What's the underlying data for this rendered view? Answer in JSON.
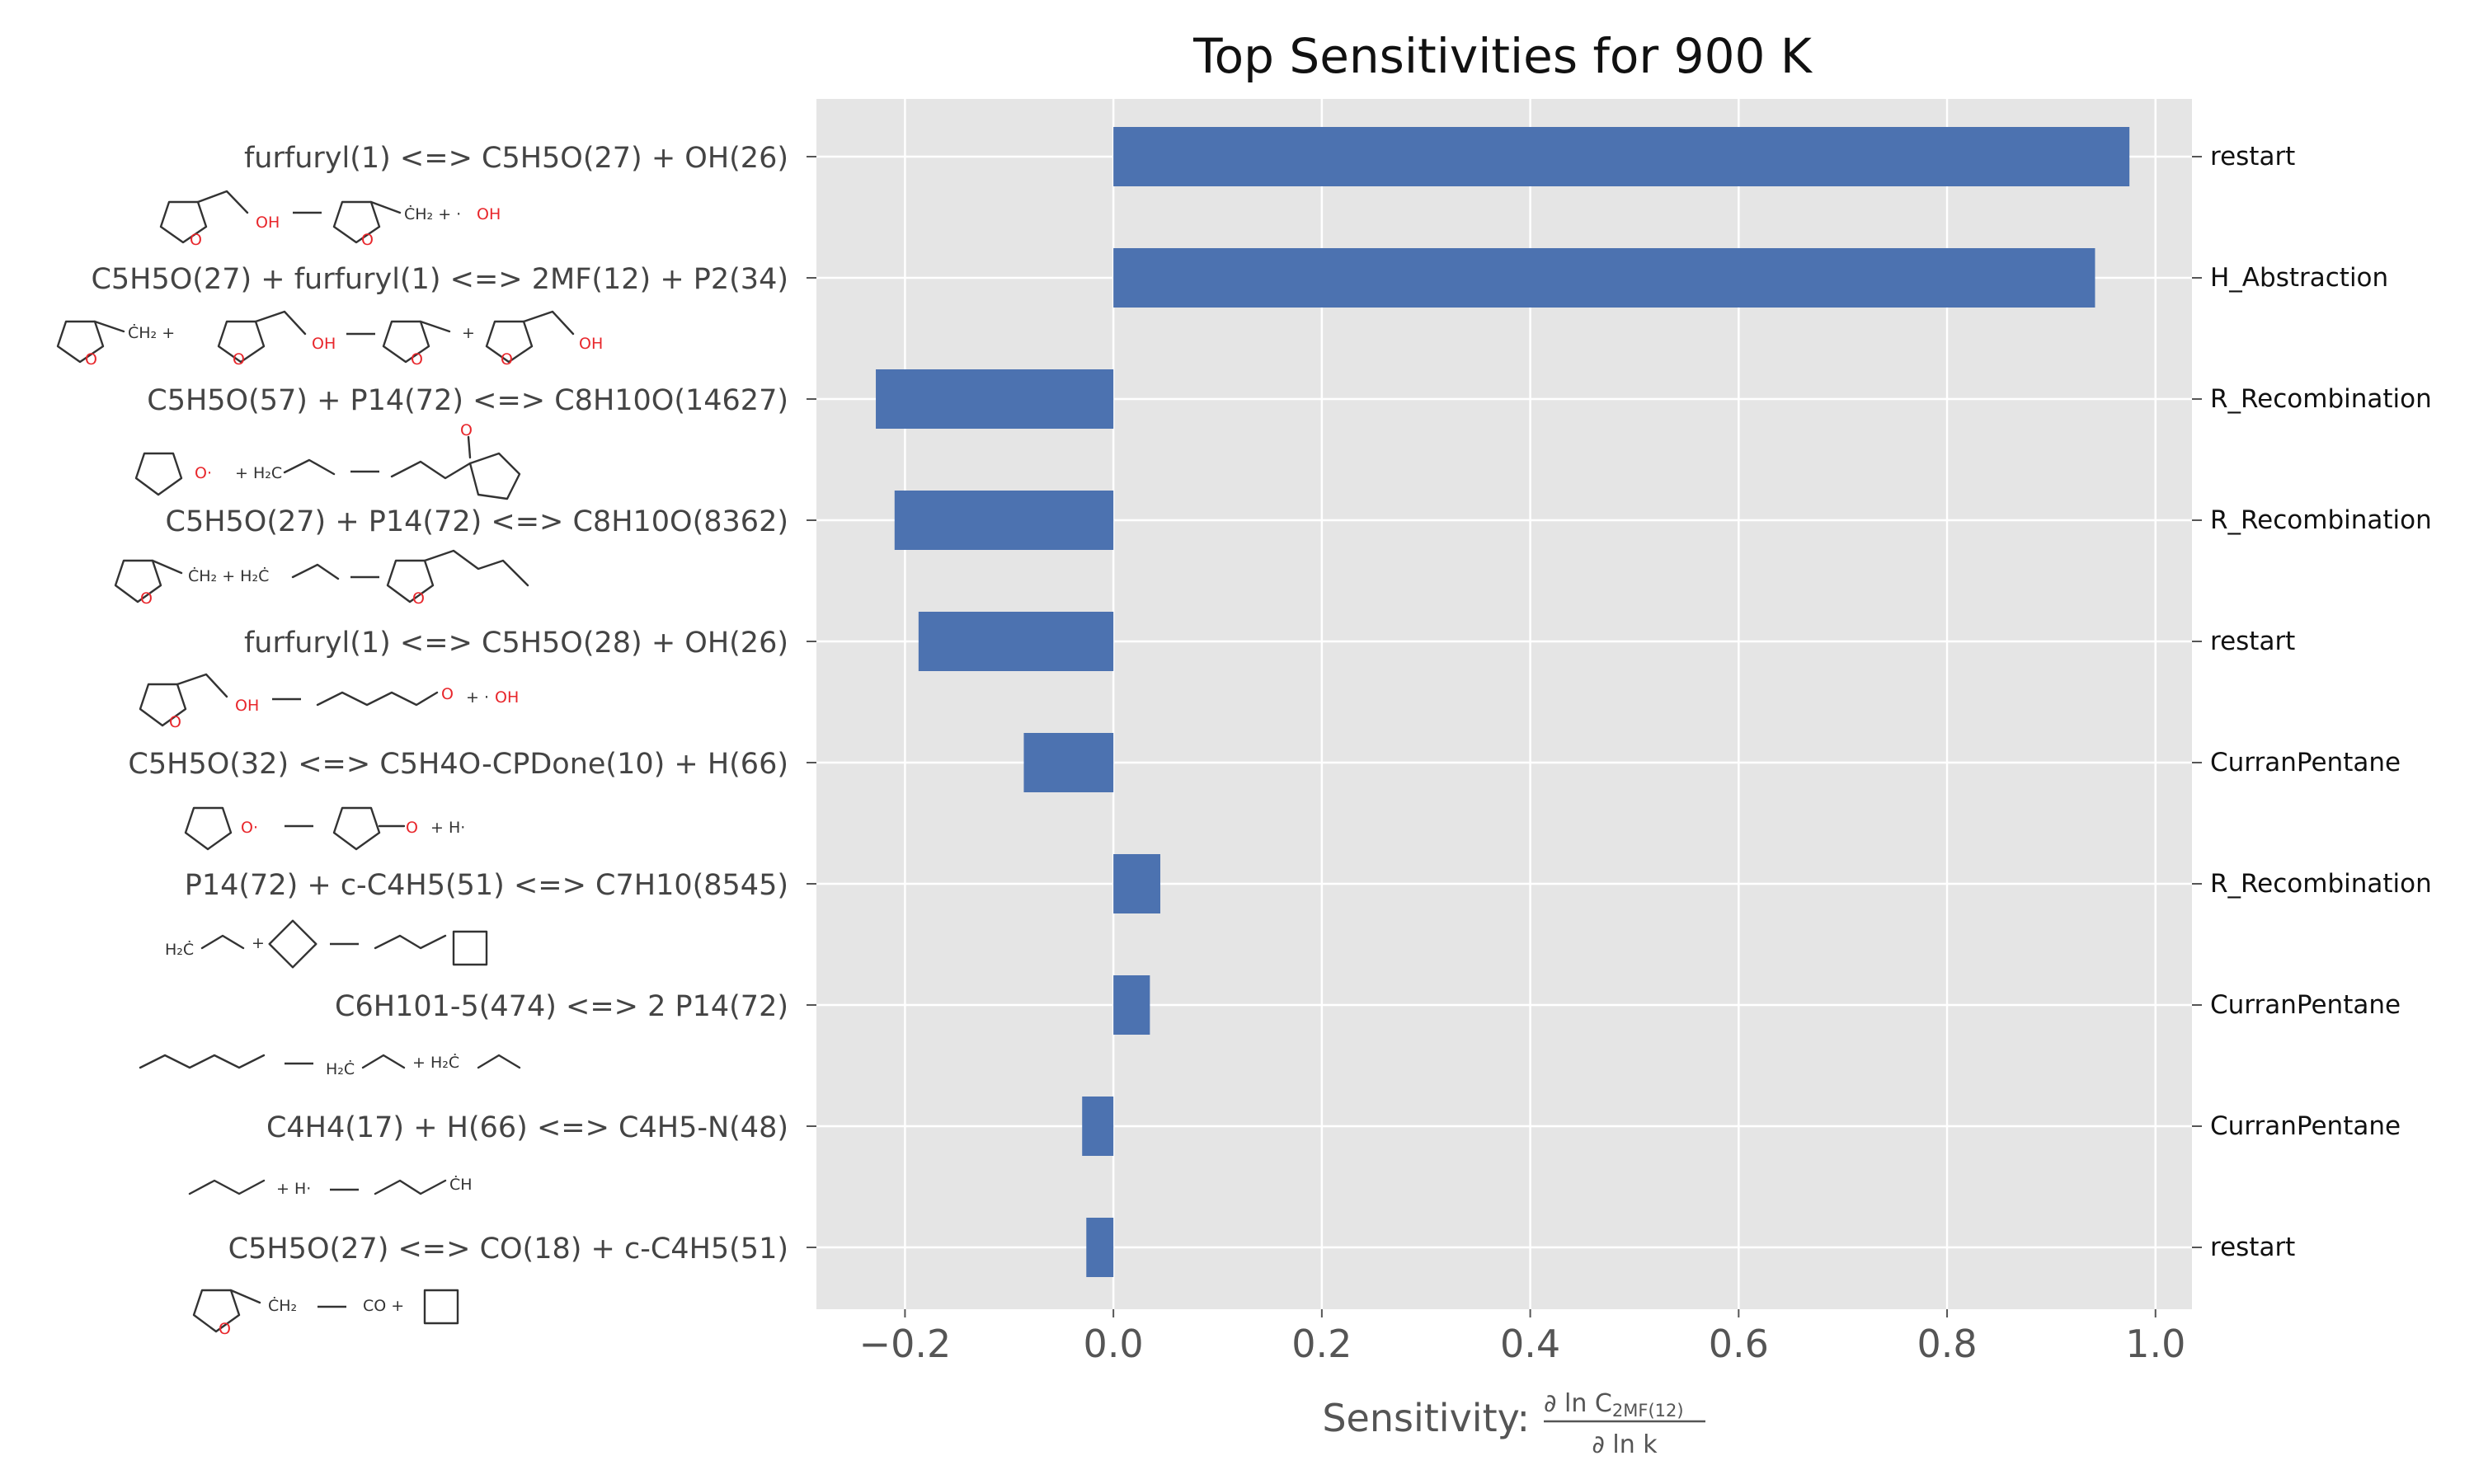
{
  "chart_data": {
    "type": "bar",
    "orientation": "horizontal",
    "title": "Top Sensitivities for 900 K",
    "xlabel_prefix": "Sensitivity:",
    "xlabel_numerator": "∂ ln C",
    "xlabel_subscript": "2MF(12)",
    "xlabel_denominator": "∂ ln k",
    "xlim": [
      -0.285,
      1.035
    ],
    "xticks": [
      -0.2,
      0.0,
      0.2,
      0.4,
      0.6,
      0.8,
      1.0
    ],
    "xtick_labels": [
      "−0.2",
      "0.0",
      "0.2",
      "0.4",
      "0.6",
      "0.8",
      "1.0"
    ],
    "grid": true,
    "bar_color": "#4c72b0",
    "background_color": "#e5e5e5",
    "reactions": [
      {
        "label": "furfuryl(1) <=> C5H5O(27) + OH(26)",
        "family": "restart",
        "value": 0.975
      },
      {
        "label": "C5H5O(27) + furfuryl(1) <=> 2MF(12) + P2(34)",
        "family": "H_Abstraction",
        "value": 0.942
      },
      {
        "label": "C5H5O(57) + P14(72) <=> C8H10O(14627)",
        "family": "R_Recombination",
        "value": -0.228
      },
      {
        "label": "C5H5O(27) + P14(72) <=> C8H10O(8362)",
        "family": "R_Recombination",
        "value": -0.21
      },
      {
        "label": "furfuryl(1) <=> C5H5O(28) + OH(26)",
        "family": "restart",
        "value": -0.187
      },
      {
        "label": "C5H5O(32) <=> C5H4O-CPDone(10) + H(66)",
        "family": "CurranPentane",
        "value": -0.086
      },
      {
        "label": "P14(72) + c-C4H5(51) <=> C7H10(8545)",
        "family": "R_Recombination",
        "value": 0.045
      },
      {
        "label": "C6H101-5(474) <=> 2 P14(72)",
        "family": "CurranPentane",
        "value": 0.035
      },
      {
        "label": "C4H4(17) + H(66) <=> C4H5-N(48)",
        "family": "CurranPentane",
        "value": -0.03
      },
      {
        "label": "C5H5O(27) <=> CO(18) + c-C4H5(51)",
        "family": "restart",
        "value": -0.026
      }
    ]
  }
}
